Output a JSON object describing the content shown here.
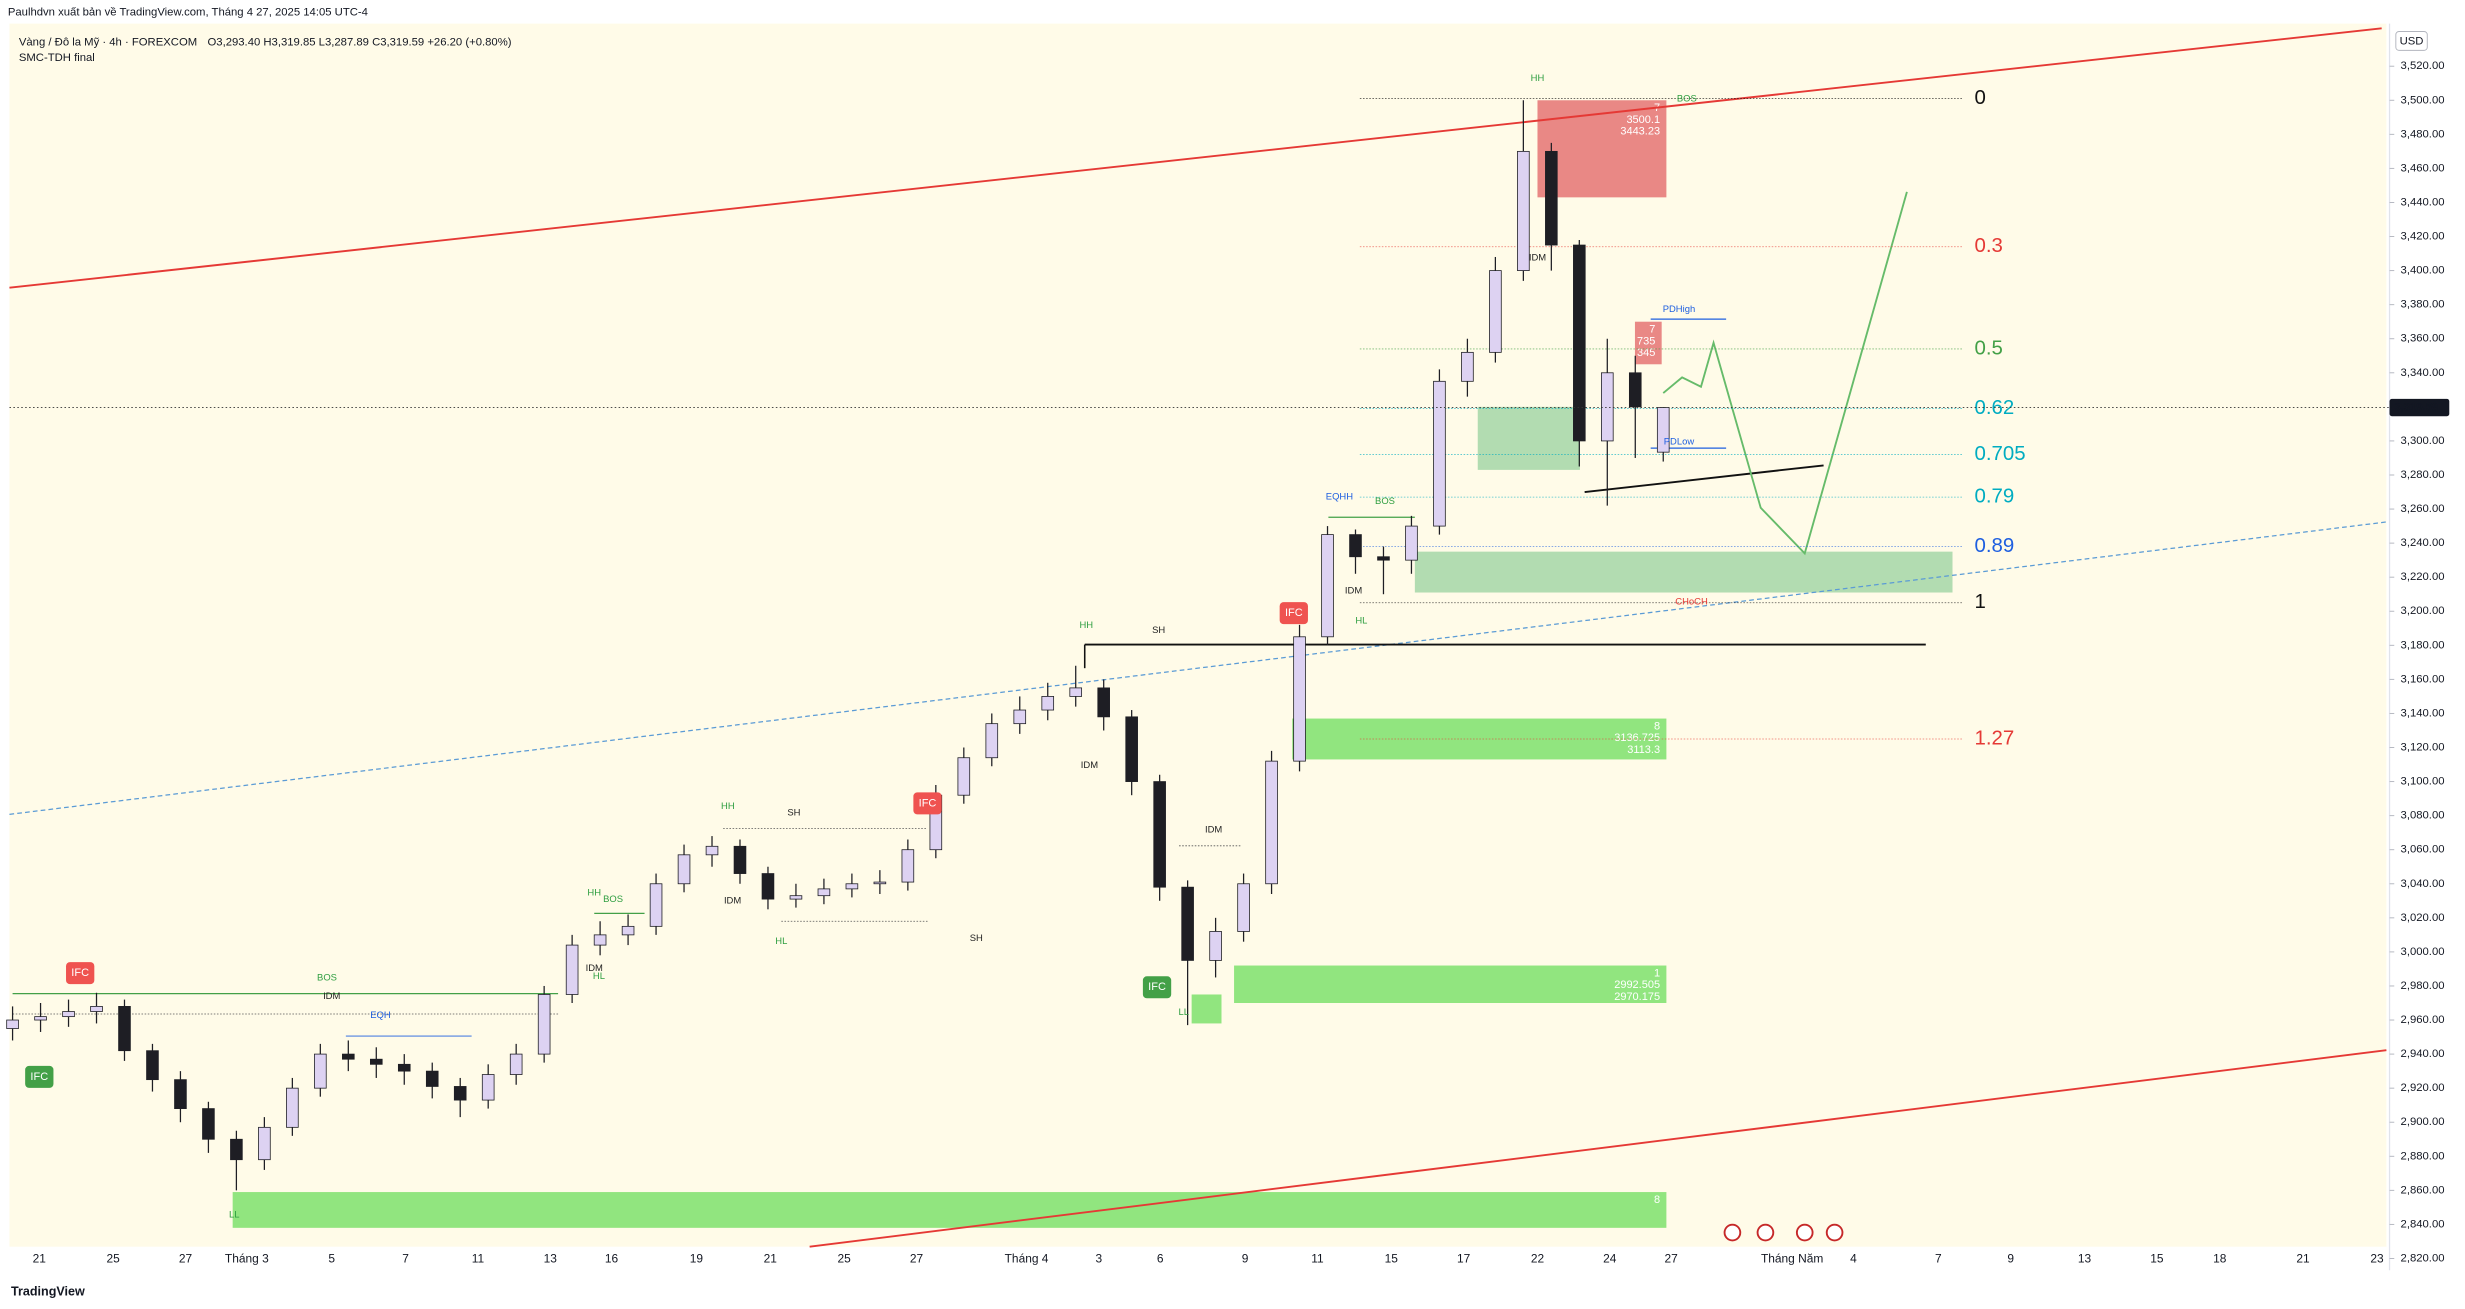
{
  "header": {
    "publisher": "Paulhdvn xuất bản về TradingView.com, Tháng 4 27, 2025 14:05 UTC-4",
    "symbol": "Vàng / Đô la Mỹ · 4h · FOREXCOM",
    "ohlc": "O3,293.40 H3,319.85 L3,287.89 C3,319.59 +26.20 (+0.80%)",
    "indicator": "SMC-TDH final"
  },
  "chart_data": {
    "type": "candlestick",
    "currency": "USD",
    "open": [
      2955,
      2960,
      2962,
      2965,
      2968,
      2942,
      2925,
      2908,
      2890,
      2878,
      2897,
      2920,
      2940,
      2937,
      2934,
      2930,
      2921,
      2913,
      2928,
      2940,
      2975,
      3004,
      3010,
      3015,
      3040,
      3057,
      3062,
      3046,
      3031,
      3033,
      3037,
      3040,
      3041,
      3060,
      3092,
      3114,
      3134,
      3142,
      3150,
      3155,
      3138,
      3100,
      3038,
      2995,
      3012,
      3040,
      3112,
      3185,
      3245,
      3232,
      3230,
      3250,
      3335,
      3352,
      3400,
      3470,
      3415,
      3300,
      3340,
      3293.4
    ],
    "high": [
      2968,
      2970,
      2972,
      2976,
      2972,
      2946,
      2930,
      2912,
      2895,
      2903,
      2926,
      2946,
      2948,
      2944,
      2940,
      2935,
      2926,
      2934,
      2946,
      2980,
      3010,
      3018,
      3022,
      3046,
      3063,
      3068,
      3066,
      3050,
      3040,
      3043,
      3046,
      3048,
      3066,
      3098,
      3120,
      3140,
      3150,
      3158,
      3168,
      3160,
      3142,
      3104,
      3042,
      3020,
      3046,
      3118,
      3192,
      3250,
      3248,
      3238,
      3256,
      3342,
      3360,
      3408,
      3500,
      3475,
      3418,
      3360,
      3350,
      3319.85
    ],
    "low": [
      2948,
      2953,
      2956,
      2958,
      2936,
      2918,
      2900,
      2882,
      2860,
      2872,
      2892,
      2915,
      2930,
      2926,
      2922,
      2914,
      2903,
      2908,
      2922,
      2935,
      2970,
      2998,
      3004,
      3010,
      3035,
      3050,
      3040,
      3025,
      3026,
      3028,
      3032,
      3034,
      3036,
      3055,
      3087,
      3109,
      3128,
      3136,
      3144,
      3130,
      3092,
      3030,
      2957,
      2985,
      3006,
      3034,
      3106,
      3180,
      3222,
      3210,
      3222,
      3245,
      3326,
      3346,
      3394,
      3400,
      3285,
      3262,
      3290,
      3287.89
    ],
    "close": [
      2960,
      2962,
      2965,
      2968,
      2942,
      2925,
      2908,
      2890,
      2878,
      2897,
      2920,
      2940,
      2937,
      2934,
      2930,
      2921,
      2913,
      2928,
      2940,
      2975,
      3004,
      3010,
      3015,
      3040,
      3057,
      3062,
      3046,
      3031,
      3033,
      3037,
      3040,
      3041,
      3060,
      3092,
      3114,
      3134,
      3142,
      3150,
      3155,
      3138,
      3100,
      3038,
      2995,
      3012,
      3040,
      3112,
      3185,
      3245,
      3232,
      3230,
      3250,
      3335,
      3352,
      3400,
      3470,
      3415,
      3300,
      3340,
      3320,
      3319.59
    ],
    "up_color": "#ddd2f2",
    "down_color": "#1e1e24",
    "ylim": [
      2814,
      3545
    ],
    "yticks": [
      {
        "value": 3520,
        "label": "3,520.00"
      },
      {
        "value": 3500,
        "label": "3,500.00"
      },
      {
        "value": 3480,
        "label": "3,480.00"
      },
      {
        "value": 3460,
        "label": "3,460.00"
      },
      {
        "value": 3440,
        "label": "3,440.00"
      },
      {
        "value": 3420,
        "label": "3,420.00"
      },
      {
        "value": 3400,
        "label": "3,400.00"
      },
      {
        "value": 3380,
        "label": "3,380.00"
      },
      {
        "value": 3360,
        "label": "3,360.00"
      },
      {
        "value": 3340,
        "label": "3,340.00"
      },
      {
        "value": 3320,
        "label": "3,320.00"
      },
      {
        "value": 3300,
        "label": "3,300.00"
      },
      {
        "value": 3280,
        "label": "3,280.00"
      },
      {
        "value": 3260,
        "label": "3,260.00"
      },
      {
        "value": 3240,
        "label": "3,240.00"
      },
      {
        "value": 3220,
        "label": "3,220.00"
      },
      {
        "value": 3200,
        "label": "3,200.00"
      },
      {
        "value": 3180,
        "label": "3,180.00"
      },
      {
        "value": 3160,
        "label": "3,160.00"
      },
      {
        "value": 3140,
        "label": "3,140.00"
      },
      {
        "value": 3120,
        "label": "3,120.00"
      },
      {
        "value": 3100,
        "label": "3,100.00"
      },
      {
        "value": 3080,
        "label": "3,080.00"
      },
      {
        "value": 3060,
        "label": "3,060.00"
      },
      {
        "value": 3040,
        "label": "3,040.00"
      },
      {
        "value": 3020,
        "label": "3,020.00"
      },
      {
        "value": 3000,
        "label": "3,000.00"
      },
      {
        "value": 2980,
        "label": "2,980.00"
      },
      {
        "value": 2960,
        "label": "2,960.00"
      },
      {
        "value": 2940,
        "label": "2,940.00"
      },
      {
        "value": 2920,
        "label": "2,920.00"
      },
      {
        "value": 2900,
        "label": "2,900.00"
      },
      {
        "value": 2880,
        "label": "2,880.00"
      },
      {
        "value": 2860,
        "label": "2,860.00"
      },
      {
        "value": 2840,
        "label": "2,840.00"
      },
      {
        "value": 2820,
        "label": "2,820.00"
      }
    ],
    "x_labels": [
      "21",
      "25",
      "27",
      "Tháng 3",
      "5",
      "7",
      "11",
      "13",
      "16",
      "19",
      "21",
      "25",
      "27",
      "Tháng 4",
      "3",
      "6",
      "9",
      "11",
      "15",
      "17",
      "22",
      "24",
      "27",
      "Tháng Năm",
      "4",
      "7",
      "9",
      "13",
      "15",
      "18",
      "21",
      "23"
    ],
    "last_price": {
      "value": 3319.59,
      "label": "3,319.59"
    },
    "fib_levels": [
      {
        "label": "0",
        "price": 3501,
        "color": "#111111"
      },
      {
        "label": "0.3",
        "price": 3414,
        "color": "#e53935"
      },
      {
        "label": "0.5",
        "price": 3354,
        "color": "#43a047"
      },
      {
        "label": "0.62",
        "price": 3319,
        "color": "#00acc1"
      },
      {
        "label": "0.705",
        "price": 3292,
        "color": "#00acc1"
      },
      {
        "label": "0.79",
        "price": 3267,
        "color": "#00acc1"
      },
      {
        "label": "0.89",
        "price": 3238,
        "color": "#1e5fe0"
      },
      {
        "label": "1",
        "price": 3205,
        "color": "#111111"
      },
      {
        "label": "1.27",
        "price": 3125,
        "color": "#e53935"
      }
    ],
    "zones": [
      {
        "top": 3500,
        "bottom": 3443,
        "color": "#e57373",
        "labels": [
          "7",
          "3500.1",
          "3443.23"
        ]
      },
      {
        "top": 3370,
        "bottom": 3345,
        "color": "#e57373",
        "labels": [
          "7",
          "735",
          "345"
        ]
      },
      {
        "top": 3320,
        "bottom": 3283,
        "color": "#a5d6a7",
        "labels": []
      },
      {
        "top": 3235,
        "bottom": 3211,
        "color": "#a5d6a7",
        "labels": []
      },
      {
        "top": 3137,
        "bottom": 3113,
        "color": "#7ee06c",
        "labels": [
          "8",
          "3136.725",
          "3113.3"
        ]
      },
      {
        "top": 2992,
        "bottom": 2970,
        "color": "#7ee06c",
        "labels": [
          "1",
          "2992.505",
          "2970.175"
        ]
      },
      {
        "top": 2975,
        "bottom": 2958,
        "color": "#7ee06c",
        "labels": []
      },
      {
        "top": 2859,
        "bottom": 2838,
        "color": "#7ee06c",
        "labels": [
          "8"
        ]
      }
    ],
    "annotations": [
      {
        "text": "HH",
        "color": "#2e9e40"
      },
      {
        "text": "BOS",
        "color": "#2e9e40"
      },
      {
        "text": "IDM",
        "color": "#222222"
      },
      {
        "text": "PDHigh",
        "color": "#1e5fe0"
      },
      {
        "text": "PDLow",
        "color": "#1e5fe0"
      },
      {
        "text": "EQHH",
        "color": "#1e5fe0"
      },
      {
        "text": "BOS",
        "color": "#2e9e40"
      },
      {
        "text": "IDM",
        "color": "#222222"
      },
      {
        "text": "HL",
        "color": "#2e9e40"
      },
      {
        "text": "CHoCH",
        "color": "#e53935"
      },
      {
        "text": "HH",
        "color": "#2e9e40"
      },
      {
        "text": "SH",
        "color": "#222222"
      },
      {
        "text": "IDM",
        "color": "#222222"
      },
      {
        "text": "HH",
        "color": "#2e9e40"
      },
      {
        "text": "SH",
        "color": "#222222"
      },
      {
        "text": "IDM",
        "color": "#222222"
      },
      {
        "text": "HL",
        "color": "#2e9e40"
      },
      {
        "text": "SH",
        "color": "#222222"
      },
      {
        "text": "HH",
        "color": "#2e9e40"
      },
      {
        "text": "BOS",
        "color": "#2e9e40"
      },
      {
        "text": "IDM",
        "color": "#222222"
      },
      {
        "text": "HL",
        "color": "#2e9e40"
      },
      {
        "text": "IDM",
        "color": "#222222"
      },
      {
        "text": "LL",
        "color": "#2e9e40"
      },
      {
        "text": "BOS",
        "color": "#2e9e40"
      },
      {
        "text": "IDM",
        "color": "#222222"
      },
      {
        "text": "EQH",
        "color": "#1e5fe0"
      },
      {
        "text": "LL",
        "color": "#2e9e40"
      }
    ],
    "badges": [
      {
        "text": "IFC",
        "color": "#ef5350"
      },
      {
        "text": "IFC",
        "color": "#ef5350"
      },
      {
        "text": "IFC",
        "color": "#43a047"
      },
      {
        "text": "IFC",
        "color": "#ef5350"
      },
      {
        "text": "IFC",
        "color": "#43a047"
      }
    ]
  },
  "footer": {
    "brand": "TradingView"
  }
}
